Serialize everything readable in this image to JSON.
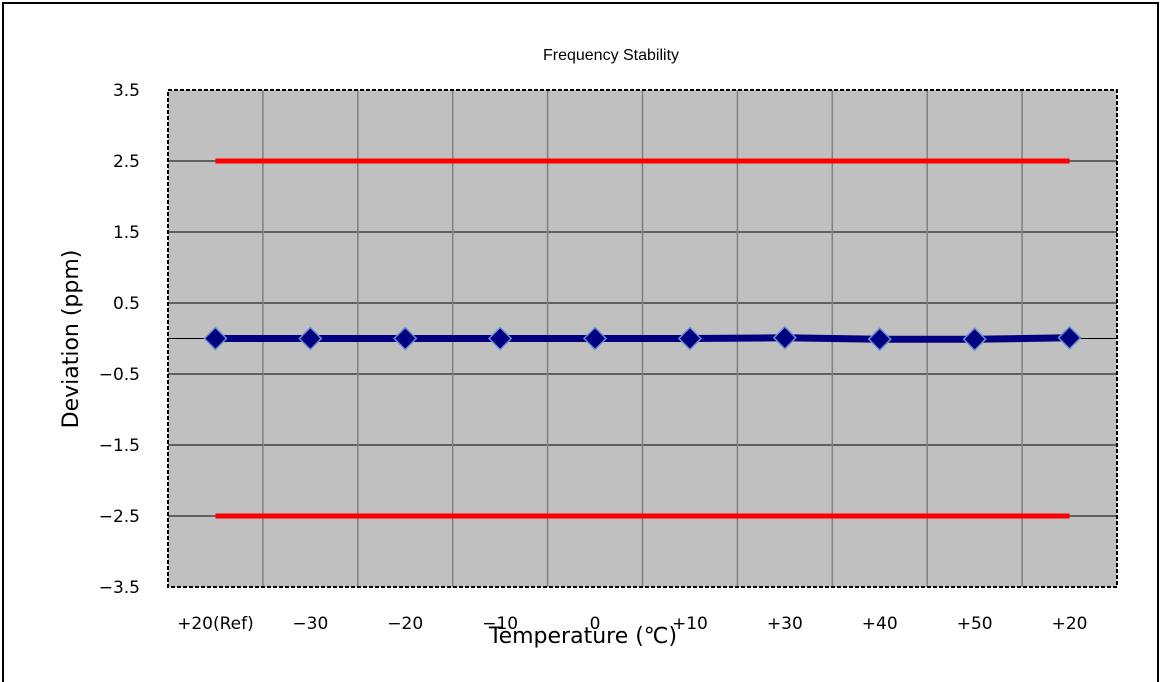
{
  "chart_data": {
    "type": "line",
    "title": "Frequency Stability",
    "xlabel": "Temperature (℃)",
    "ylabel": "Deviation (ppm)",
    "categories": [
      "+20(Ref)",
      "−30",
      "−20",
      "−10",
      "0",
      "+10",
      "+30",
      "+40",
      "+50",
      "+20"
    ],
    "y_ticks": [
      "3.5",
      "2.5",
      "1.5",
      "0.5",
      "−0.5",
      "−1.5",
      "−2.5",
      "−3.5"
    ],
    "ylim": [
      -3.5,
      3.5
    ],
    "grid": true,
    "plot_background": "#c0c0c0",
    "series": [
      {
        "values": [
          0,
          0,
          0,
          0,
          0,
          0,
          0.01,
          -0.01,
          -0.01,
          0.01
        ],
        "color": "#000080",
        "marker": "diamond"
      },
      {
        "values": [
          2.5,
          2.5,
          2.5,
          2.5,
          2.5,
          2.5,
          2.5,
          2.5,
          2.5,
          2.5
        ],
        "color": "#ff0000"
      },
      {
        "values": [
          -2.5,
          -2.5,
          -2.5,
          -2.5,
          -2.5,
          -2.5,
          -2.5,
          -2.5,
          -2.5,
          -2.5
        ],
        "color": "#ff0000"
      }
    ]
  }
}
